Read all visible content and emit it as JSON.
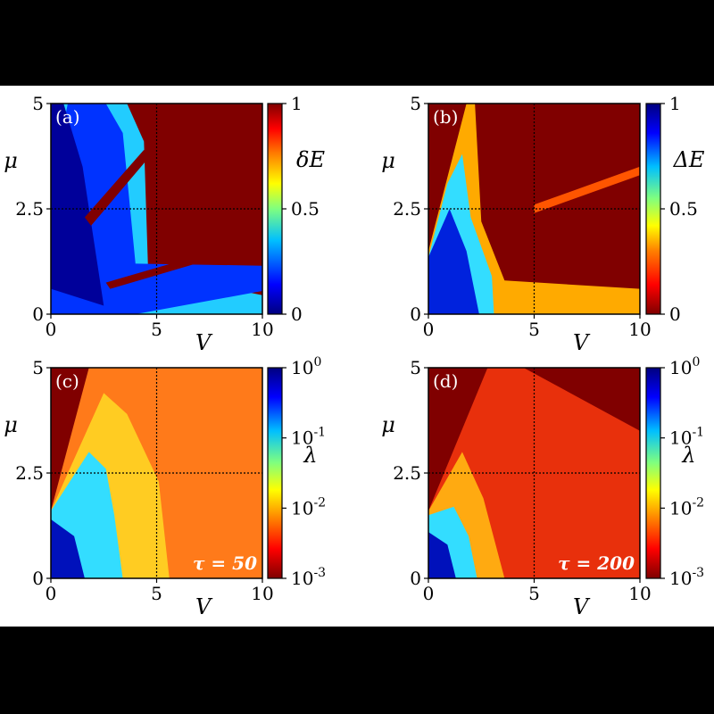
{
  "chart_data": [
    {
      "type": "heatmap",
      "panel": "(a)",
      "xlabel": "V",
      "ylabel": "μ",
      "xlim": [
        0,
        10
      ],
      "ylim": [
        0,
        5
      ],
      "x_ticks": [
        "0",
        "5",
        "10"
      ],
      "y_ticks": [
        "0",
        "2.5",
        "5"
      ],
      "colorbar": {
        "label": "δE",
        "ticks": [
          "0",
          "0.5",
          "1"
        ],
        "scale": "linear",
        "range": [
          0,
          1
        ]
      },
      "reference_lines": {
        "x": 5,
        "y": 2.5
      }
    },
    {
      "type": "heatmap",
      "panel": "(b)",
      "xlabel": "V",
      "ylabel": "μ",
      "xlim": [
        0,
        10
      ],
      "ylim": [
        0,
        5
      ],
      "x_ticks": [
        "0",
        "5",
        "10"
      ],
      "y_ticks": [
        "0",
        "2.5",
        "5"
      ],
      "colorbar": {
        "label": "ΔE",
        "ticks": [
          "0",
          "0.5",
          "1"
        ],
        "scale": "linear",
        "range": [
          0,
          1
        ]
      },
      "reference_lines": {
        "x": 5,
        "y": 2.5
      }
    },
    {
      "type": "heatmap",
      "panel": "(c)",
      "xlabel": "V",
      "ylabel": "μ",
      "xlim": [
        0,
        10
      ],
      "ylim": [
        0,
        5
      ],
      "x_ticks": [
        "0",
        "5",
        "10"
      ],
      "y_ticks": [
        "0",
        "2.5",
        "5"
      ],
      "colorbar": {
        "label": "λ",
        "ticks": [
          "10",
          "10",
          "10",
          "10"
        ],
        "tick_exponents": [
          "-3",
          "-2",
          "-1",
          "0"
        ],
        "scale": "log",
        "range": [
          0.001,
          1
        ]
      },
      "annotation": "τ = 50",
      "reference_lines": {
        "x": 5,
        "y": 2.5
      }
    },
    {
      "type": "heatmap",
      "panel": "(d)",
      "xlabel": "V",
      "ylabel": "μ",
      "xlim": [
        0,
        10
      ],
      "ylim": [
        0,
        5
      ],
      "x_ticks": [
        "0",
        "5",
        "10"
      ],
      "y_ticks": [
        "0",
        "2.5",
        "5"
      ],
      "colorbar": {
        "label": "λ",
        "ticks": [
          "10",
          "10",
          "10",
          "10"
        ],
        "tick_exponents": [
          "-3",
          "-2",
          "-1",
          "0"
        ],
        "scale": "log",
        "range": [
          0.001,
          1
        ]
      },
      "annotation": "τ = 200",
      "reference_lines": {
        "x": 5,
        "y": 2.5
      }
    }
  ],
  "colors": {
    "colormap": [
      "#00007f",
      "#0000ff",
      "#00bfff",
      "#7fff7f",
      "#ffff00",
      "#ff7f00",
      "#ff0000",
      "#7f0000"
    ]
  }
}
